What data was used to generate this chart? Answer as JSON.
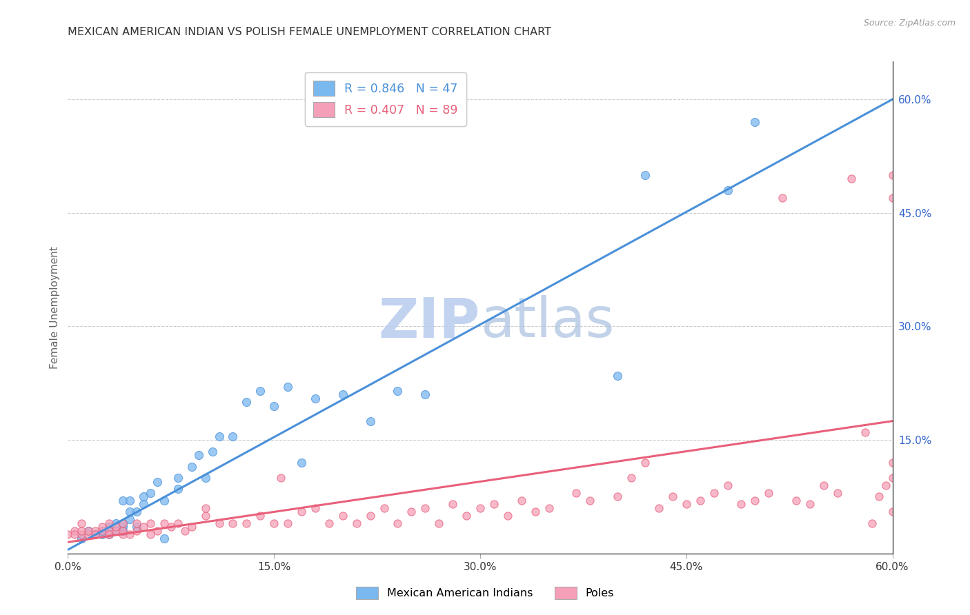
{
  "title": "MEXICAN AMERICAN INDIAN VS POLISH FEMALE UNEMPLOYMENT CORRELATION CHART",
  "source": "Source: ZipAtlas.com",
  "ylabel": "Female Unemployment",
  "xmin": 0.0,
  "xmax": 0.6,
  "ymin": 0.0,
  "ymax": 0.65,
  "xtick_labels": [
    "0.0%",
    "",
    "15.0%",
    "",
    "30.0%",
    "",
    "45.0%",
    "",
    "60.0%"
  ],
  "xtick_vals": [
    0.0,
    0.075,
    0.15,
    0.225,
    0.3,
    0.375,
    0.45,
    0.525,
    0.6
  ],
  "xtick_display_labels": [
    "0.0%",
    "15.0%",
    "30.0%",
    "45.0%",
    "60.0%"
  ],
  "xtick_display_vals": [
    0.0,
    0.15,
    0.3,
    0.45,
    0.6
  ],
  "ytick_labels_right": [
    "60.0%",
    "45.0%",
    "30.0%",
    "15.0%"
  ],
  "ytick_vals_right": [
    0.6,
    0.45,
    0.3,
    0.15
  ],
  "legend_entries": [
    {
      "label": "Mexican American Indians",
      "R": "0.846",
      "N": "47",
      "color": "#7ab8f0",
      "line_color": "#4a90d9"
    },
    {
      "label": "Poles",
      "R": "0.407",
      "N": "89",
      "color": "#f5a0b8",
      "line_color": "#e8607a"
    }
  ],
  "watermark": "ZIPatlas",
  "watermark_color": "#c8d8f0",
  "blue_scatter_x": [
    0.01,
    0.015,
    0.02,
    0.025,
    0.025,
    0.03,
    0.03,
    0.03,
    0.035,
    0.035,
    0.04,
    0.04,
    0.04,
    0.04,
    0.045,
    0.045,
    0.045,
    0.05,
    0.05,
    0.055,
    0.055,
    0.06,
    0.065,
    0.07,
    0.07,
    0.08,
    0.08,
    0.09,
    0.095,
    0.1,
    0.105,
    0.11,
    0.12,
    0.13,
    0.14,
    0.15,
    0.16,
    0.17,
    0.18,
    0.2,
    0.22,
    0.24,
    0.26,
    0.4,
    0.42,
    0.48,
    0.5
  ],
  "blue_scatter_y": [
    0.02,
    0.03,
    0.025,
    0.03,
    0.025,
    0.025,
    0.03,
    0.035,
    0.04,
    0.03,
    0.03,
    0.035,
    0.04,
    0.07,
    0.045,
    0.055,
    0.07,
    0.035,
    0.055,
    0.065,
    0.075,
    0.08,
    0.095,
    0.02,
    0.07,
    0.085,
    0.1,
    0.115,
    0.13,
    0.1,
    0.135,
    0.155,
    0.155,
    0.2,
    0.215,
    0.195,
    0.22,
    0.12,
    0.205,
    0.21,
    0.175,
    0.215,
    0.21,
    0.235,
    0.5,
    0.48,
    0.57
  ],
  "pink_scatter_x": [
    0.0,
    0.005,
    0.005,
    0.01,
    0.01,
    0.01,
    0.015,
    0.015,
    0.02,
    0.02,
    0.025,
    0.025,
    0.03,
    0.03,
    0.03,
    0.035,
    0.035,
    0.04,
    0.04,
    0.04,
    0.045,
    0.05,
    0.05,
    0.055,
    0.06,
    0.06,
    0.065,
    0.07,
    0.075,
    0.08,
    0.085,
    0.09,
    0.1,
    0.1,
    0.11,
    0.12,
    0.13,
    0.14,
    0.15,
    0.155,
    0.16,
    0.17,
    0.18,
    0.19,
    0.2,
    0.21,
    0.22,
    0.23,
    0.24,
    0.25,
    0.26,
    0.27,
    0.28,
    0.29,
    0.3,
    0.31,
    0.32,
    0.33,
    0.34,
    0.35,
    0.37,
    0.38,
    0.4,
    0.41,
    0.42,
    0.43,
    0.44,
    0.45,
    0.46,
    0.47,
    0.48,
    0.49,
    0.5,
    0.51,
    0.52,
    0.53,
    0.54,
    0.55,
    0.56,
    0.57,
    0.58,
    0.585,
    0.59,
    0.595,
    0.6,
    0.6,
    0.6,
    0.6,
    0.6
  ],
  "pink_scatter_y": [
    0.025,
    0.03,
    0.025,
    0.025,
    0.03,
    0.04,
    0.025,
    0.03,
    0.03,
    0.025,
    0.03,
    0.035,
    0.03,
    0.025,
    0.04,
    0.03,
    0.035,
    0.025,
    0.03,
    0.04,
    0.025,
    0.03,
    0.04,
    0.035,
    0.025,
    0.04,
    0.03,
    0.04,
    0.035,
    0.04,
    0.03,
    0.035,
    0.05,
    0.06,
    0.04,
    0.04,
    0.04,
    0.05,
    0.04,
    0.1,
    0.04,
    0.055,
    0.06,
    0.04,
    0.05,
    0.04,
    0.05,
    0.06,
    0.04,
    0.055,
    0.06,
    0.04,
    0.065,
    0.05,
    0.06,
    0.065,
    0.05,
    0.07,
    0.055,
    0.06,
    0.08,
    0.07,
    0.075,
    0.1,
    0.12,
    0.06,
    0.075,
    0.065,
    0.07,
    0.08,
    0.09,
    0.065,
    0.07,
    0.08,
    0.47,
    0.07,
    0.065,
    0.09,
    0.08,
    0.495,
    0.16,
    0.04,
    0.075,
    0.09,
    0.1,
    0.12,
    0.5,
    0.055,
    0.47
  ],
  "blue_line_x": [
    0.0,
    0.6
  ],
  "blue_line_y": [
    0.005,
    0.6
  ],
  "pink_line_x": [
    0.0,
    0.6
  ],
  "pink_line_y": [
    0.015,
    0.175
  ],
  "blue_line_color": "#4a90d9",
  "pink_line_color": "#e8607a",
  "scatter_blue_color": "#7ab8f0",
  "scatter_pink_color": "#f5a0b8",
  "background_color": "#ffffff",
  "grid_color": "#cccccc",
  "title_color": "#333333",
  "axis_label_color": "#666666",
  "right_tick_color": "#3366cc",
  "bottom_tick_color": "#333333"
}
